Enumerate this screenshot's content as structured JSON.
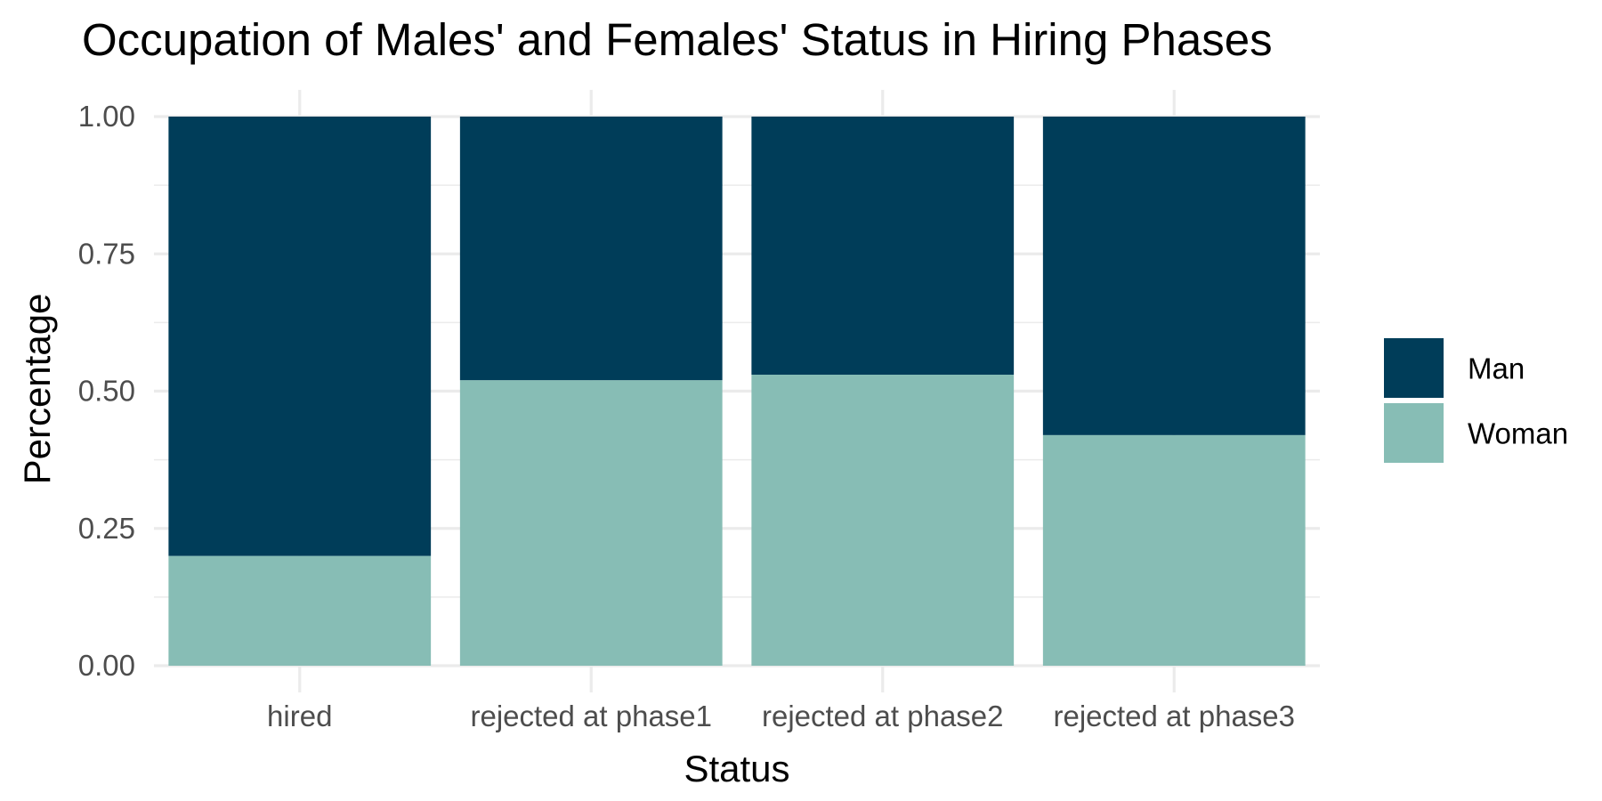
{
  "chart_data": {
    "type": "bar",
    "stacked": true,
    "title": "Occupation of Males' and Females' Status in Hiring Phases",
    "xlabel": "Status",
    "ylabel": "Percentage",
    "categories": [
      "hired",
      "rejected at phase1",
      "rejected at phase2",
      "rejected at phase3"
    ],
    "series": [
      {
        "name": "Woman",
        "values": [
          0.2,
          0.52,
          0.53,
          0.42
        ],
        "color": "#87bdb5"
      },
      {
        "name": "Man",
        "values": [
          0.8,
          0.48,
          0.47,
          0.58
        ],
        "color": "#003d59"
      }
    ],
    "ylim": [
      0,
      1
    ],
    "yticks": [
      "0.00",
      "0.25",
      "0.50",
      "0.75",
      "1.00"
    ],
    "yticks_values": [
      0,
      0.25,
      0.5,
      0.75,
      1.0
    ],
    "grid": true,
    "legend_position": "right",
    "legend_order": [
      "Man",
      "Woman"
    ]
  }
}
